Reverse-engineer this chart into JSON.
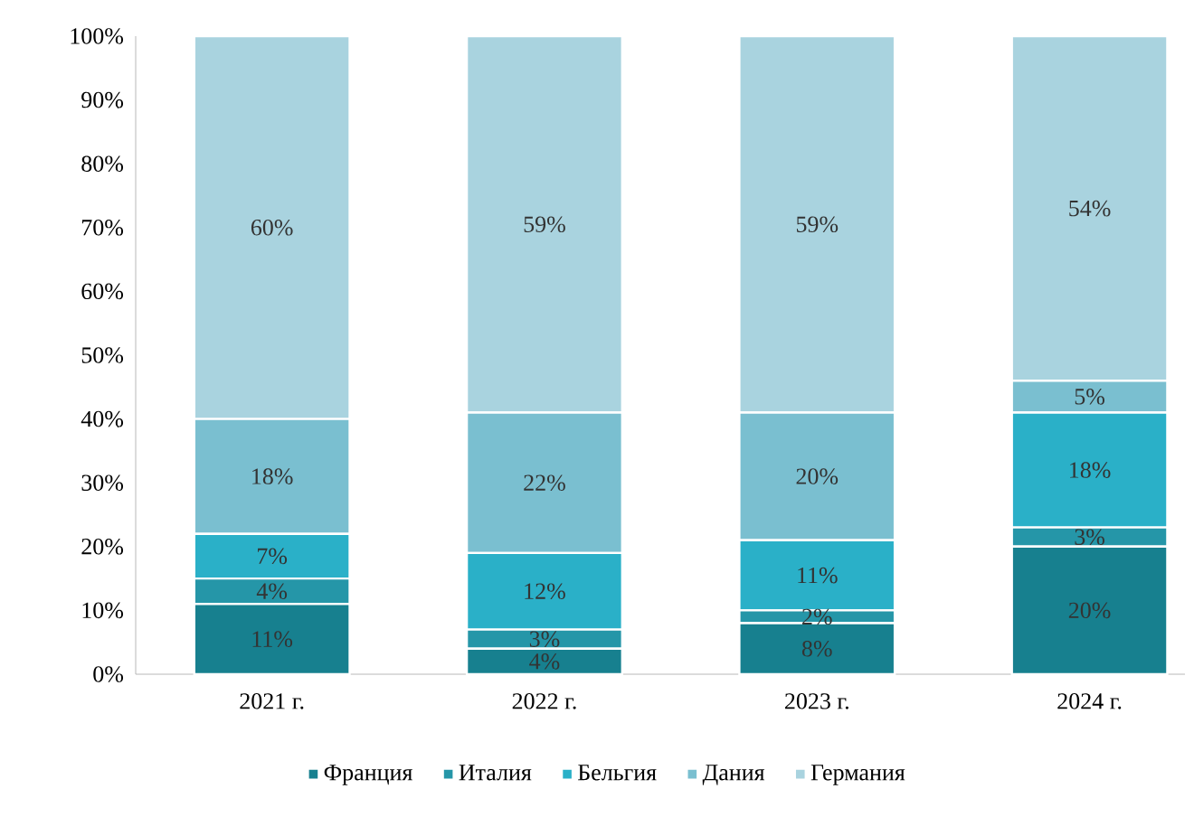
{
  "chart_data": {
    "type": "bar",
    "stacked": true,
    "categories": [
      "2021 г.",
      "2022 г.",
      "2023 г.",
      "2024 г."
    ],
    "series": [
      {
        "name": "Франция",
        "color": "#17808f",
        "values": [
          11,
          4,
          8,
          20
        ],
        "value_labels": [
          "11%",
          "4%",
          "8%",
          "20%"
        ]
      },
      {
        "name": "Италия",
        "color": "#2596a8",
        "values": [
          4,
          3,
          2,
          3
        ],
        "value_labels": [
          "4%",
          "3%",
          "2%",
          "3%"
        ]
      },
      {
        "name": "Бельгия",
        "color": "#2ab0c8",
        "values": [
          7,
          12,
          11,
          18
        ],
        "value_labels": [
          "7%",
          "12%",
          "11%",
          "18%"
        ]
      },
      {
        "name": "Дания",
        "color": "#7abfd0",
        "values": [
          18,
          22,
          20,
          5
        ],
        "value_labels": [
          "18%",
          "22%",
          "20%",
          "5%"
        ]
      },
      {
        "name": "Германия",
        "color": "#a9d3df",
        "values": [
          60,
          59,
          59,
          54
        ],
        "value_labels": [
          "60%",
          "59%",
          "59%",
          "54%"
        ]
      }
    ],
    "ylim": [
      0,
      100
    ],
    "yticks": [
      {
        "value": 0,
        "label": "0%"
      },
      {
        "value": 10,
        "label": "10%"
      },
      {
        "value": 20,
        "label": "20%"
      },
      {
        "value": 30,
        "label": "30%"
      },
      {
        "value": 40,
        "label": "40%"
      },
      {
        "value": 50,
        "label": "50%"
      },
      {
        "value": 60,
        "label": "60%"
      },
      {
        "value": 70,
        "label": "70%"
      },
      {
        "value": 80,
        "label": "80%"
      },
      {
        "value": 90,
        "label": "90%"
      },
      {
        "value": 100,
        "label": "100%"
      }
    ],
    "grid": false,
    "legend": "bottom"
  }
}
